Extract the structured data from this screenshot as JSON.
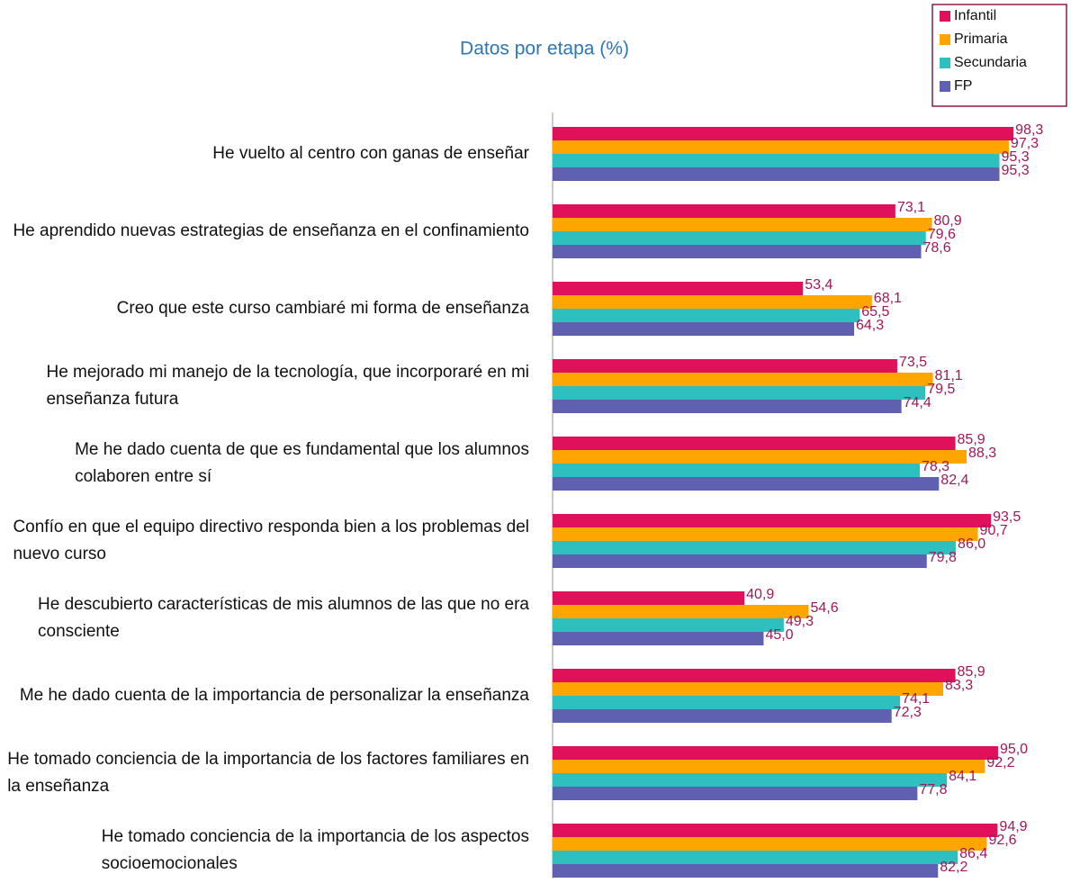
{
  "chart_data": {
    "type": "hbar",
    "title": "Datos por etapa (%)",
    "categories": [
      "He vuelto al centro con ganas de enseñar",
      "He aprendido nuevas estrategias de enseñanza en el confinamiento",
      "Creo que este curso cambiaré mi forma de enseñanza",
      "He mejorado mi manejo de la tecnología, que incorporaré en mi enseñanza futura",
      "Me he dado cuenta de que es fundamental que los alumnos colaboren entre sí",
      "Confío en que el equipo directivo responda bien a los problemas del nuevo curso",
      "He descubierto características de mis alumnos de las que no era consciente",
      "Me he dado cuenta de la importancia de personalizar la enseñanza",
      "He tomado conciencia de la importancia de los factores familiares en la enseñanza",
      "He tomado conciencia de la importancia de los aspectos socioemocionales"
    ],
    "series": [
      {
        "name": "Infantil",
        "color": "#e0105a",
        "values": [
          98.3,
          73.1,
          53.4,
          73.5,
          85.9,
          93.5,
          40.9,
          85.9,
          95.0,
          94.9
        ],
        "value_labels": [
          "98,3",
          "73,1",
          "53,4",
          "73,5",
          "85,9",
          "93,5",
          "40,9",
          "85,9",
          "95,0",
          "94,9"
        ]
      },
      {
        "name": "Primaria",
        "color": "#ffa500",
        "values": [
          97.3,
          80.9,
          68.1,
          81.1,
          88.3,
          90.7,
          54.6,
          83.3,
          92.2,
          92.6
        ],
        "value_labels": [
          "97,3",
          "80,9",
          "68,1",
          "81,1",
          "88,3",
          "90,7",
          "54,6",
          "83,3",
          "92,2",
          "92,6"
        ]
      },
      {
        "name": "Secundaria",
        "color": "#2ebfbf",
        "values": [
          95.3,
          79.6,
          65.5,
          79.5,
          78.3,
          86.0,
          49.3,
          74.1,
          84.1,
          86.4
        ],
        "value_labels": [
          "95,3",
          "79,6",
          "65,5",
          "79,5",
          "78,3",
          "86,0",
          "49,3",
          "74,1",
          "84,1",
          "86,4"
        ]
      },
      {
        "name": "FP",
        "color": "#6060b0",
        "values": [
          95.3,
          78.6,
          64.3,
          74.4,
          82.4,
          79.8,
          45.0,
          72.3,
          77.8,
          82.2
        ],
        "value_labels": [
          "95,3",
          "78,6",
          "64,3",
          "74,4",
          "82,4",
          "79,8",
          "45,0",
          "72,3",
          "77,8",
          "82,2"
        ]
      }
    ],
    "xlim": [
      0,
      100
    ],
    "legend": "top-right"
  }
}
